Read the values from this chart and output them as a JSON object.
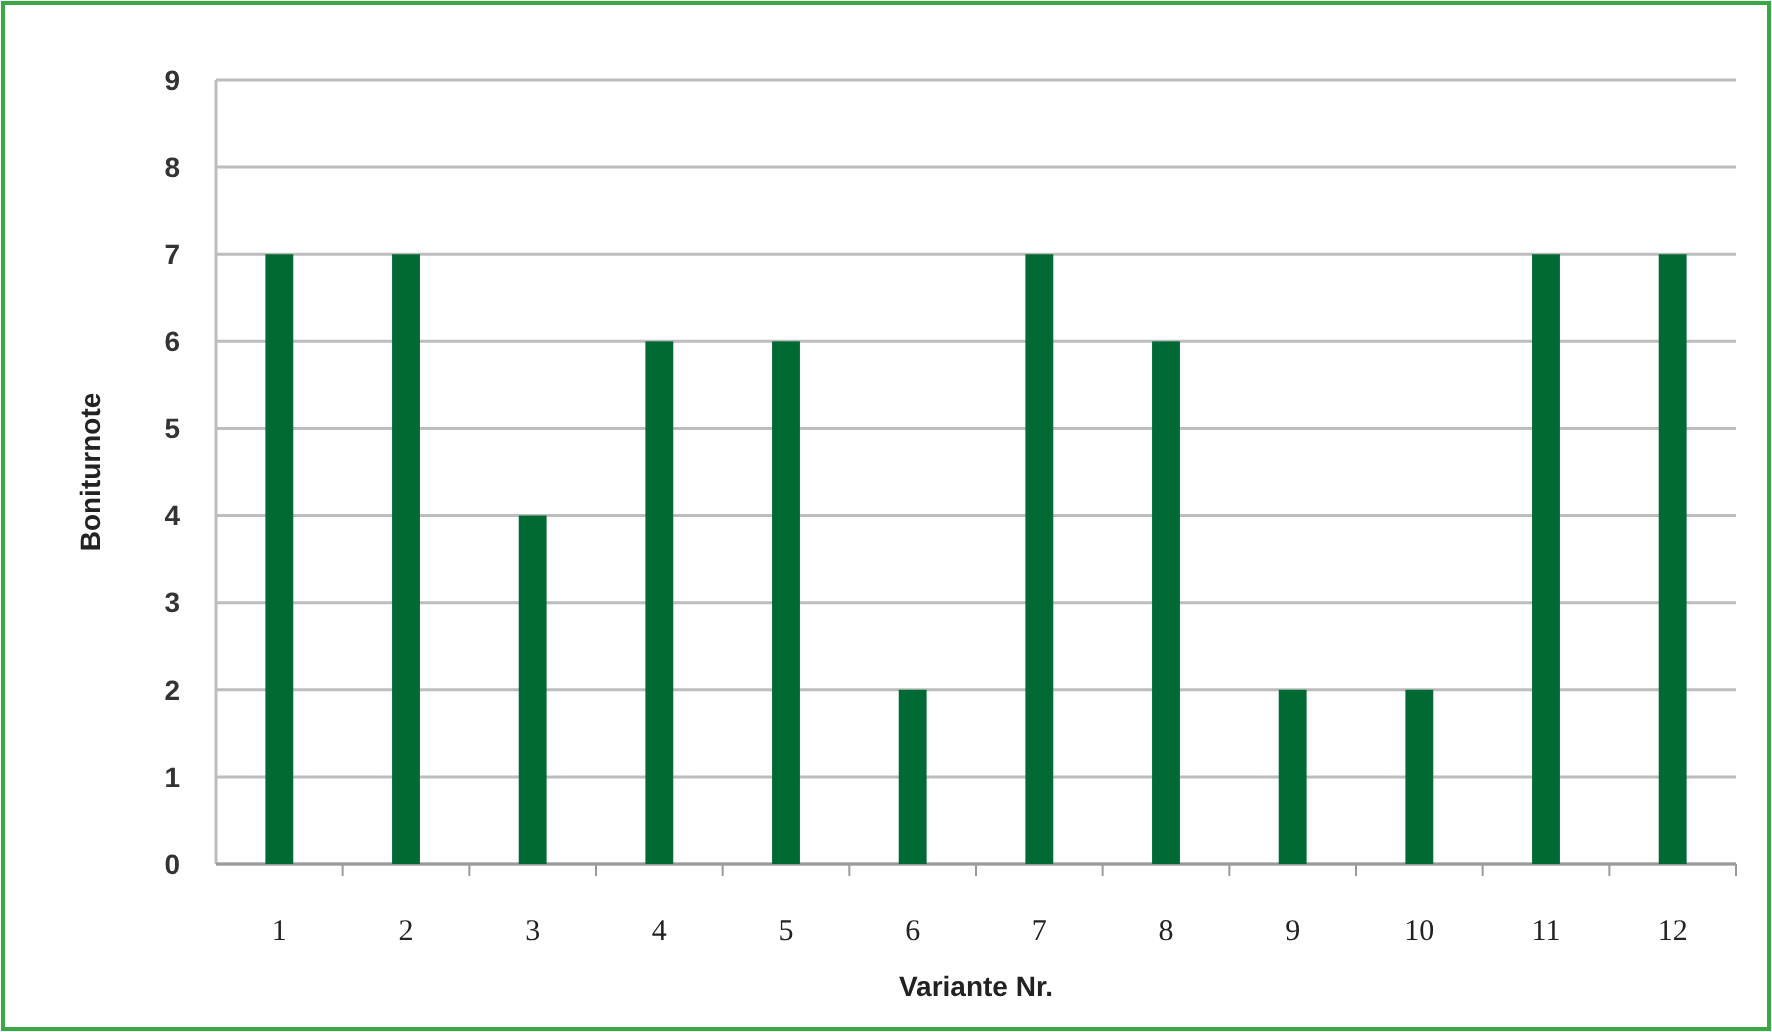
{
  "chart_data": {
    "type": "bar",
    "xlabel": "Variante Nr.",
    "ylabel": "Boniturnote",
    "categories": [
      "1",
      "2",
      "3",
      "4",
      "5",
      "6",
      "7",
      "8",
      "9",
      "10",
      "11",
      "12"
    ],
    "values": [
      7,
      7,
      4,
      6,
      6,
      2,
      7,
      6,
      2,
      2,
      7,
      7
    ],
    "color": "#006a35",
    "ylim": [
      0,
      9
    ],
    "yticks": [
      0,
      1,
      2,
      3,
      4,
      5,
      6,
      7,
      8,
      9
    ],
    "grid": "y"
  }
}
